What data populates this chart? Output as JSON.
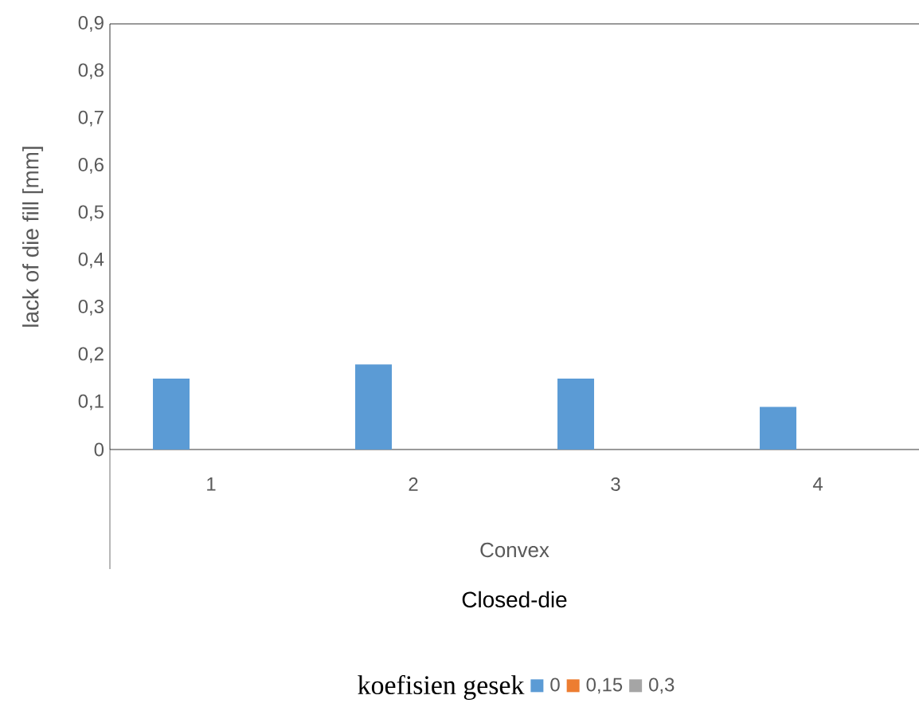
{
  "chart_data": {
    "type": "bar",
    "xlabel": "Closed-die",
    "ylabel": "lack of die fill [mm]",
    "legend_title": "koefisien gesek",
    "annotations": [
      "Convex"
    ],
    "categories": [
      "1",
      "2",
      "3",
      "4"
    ],
    "series": [
      {
        "name": "0",
        "color": "#5b9bd5",
        "values": [
          0.15,
          0.18,
          0.15,
          0.09
        ]
      },
      {
        "name": "0,15",
        "color": "#ed7d31",
        "values": [
          0,
          0,
          0,
          0
        ]
      },
      {
        "name": "0,3",
        "color": "#a5a5a5",
        "values": [
          0,
          0,
          0,
          0
        ]
      }
    ],
    "ylim": [
      0,
      0.9
    ],
    "yticks": [
      0,
      {
        "value": 0.1,
        "label": "0,1"
      },
      {
        "value": 0.2,
        "label": "0,2"
      },
      {
        "value": 0.3,
        "label": "0,3"
      },
      {
        "value": 0.4,
        "label": "0,4"
      },
      {
        "value": 0.5,
        "label": "0,5"
      },
      {
        "value": 0.6,
        "label": "0,6"
      },
      {
        "value": 0.7,
        "label": "0,7"
      },
      {
        "value": 0.8,
        "label": "0,8"
      },
      {
        "value": 0.9,
        "label": "0,9"
      }
    ],
    "grid": false,
    "legend": "bottom"
  }
}
